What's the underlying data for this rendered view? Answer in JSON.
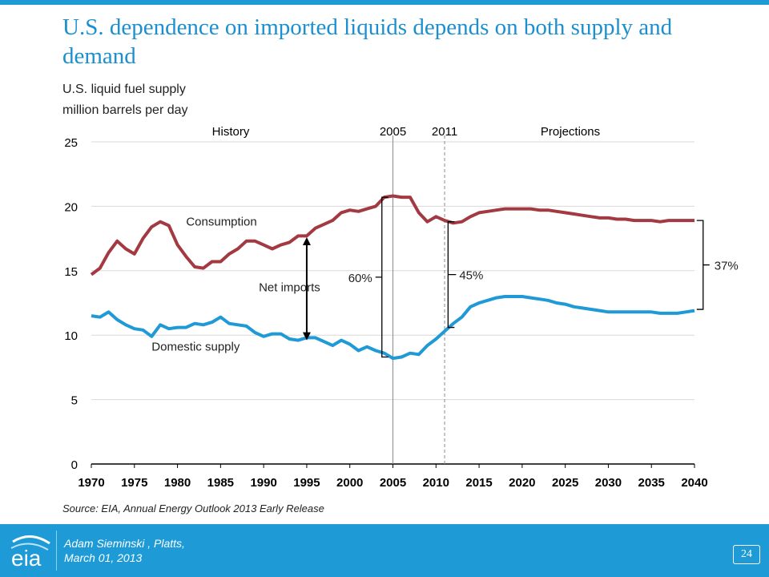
{
  "slide": {
    "title": "U.S. dependence on imported liquids depends on both supply and demand",
    "subtitle_line1": "U.S. liquid fuel supply",
    "subtitle_line2": "million barrels per day",
    "source": "Source:  EIA, Annual Energy Outlook 2013 Early Release",
    "footer_author": "Adam Sieminski , Platts,",
    "footer_date": "March 01, 2013",
    "page_number": "24",
    "logo_text": "eia"
  },
  "colors": {
    "brand_blue": "#1e9bd7",
    "consumption": "#a33a42",
    "domestic": "#1f9ad6"
  },
  "chart_data": {
    "type": "line",
    "xlim": [
      1970,
      2040
    ],
    "ylim": [
      0,
      25
    ],
    "x_ticks": [
      1970,
      1975,
      1980,
      1985,
      1990,
      1995,
      2000,
      2005,
      2010,
      2015,
      2020,
      2025,
      2030,
      2035,
      2040
    ],
    "y_ticks": [
      0,
      5,
      10,
      15,
      20,
      25
    ],
    "grid": true,
    "period_labels": {
      "history": "History",
      "projections": "Projections"
    },
    "markers": [
      {
        "year": 2005,
        "label": "2005",
        "style": "solid"
      },
      {
        "year": 2011,
        "label": "2011",
        "style": "dashed"
      }
    ],
    "series": [
      {
        "name": "Consumption",
        "x": [
          1970,
          1971,
          1972,
          1973,
          1974,
          1975,
          1976,
          1977,
          1978,
          1979,
          1980,
          1981,
          1982,
          1983,
          1984,
          1985,
          1986,
          1987,
          1988,
          1989,
          1990,
          1991,
          1992,
          1993,
          1994,
          1995,
          1996,
          1997,
          1998,
          1999,
          2000,
          2001,
          2002,
          2003,
          2004,
          2005,
          2006,
          2007,
          2008,
          2009,
          2010,
          2011,
          2012,
          2013,
          2014,
          2015,
          2016,
          2017,
          2018,
          2019,
          2020,
          2021,
          2022,
          2023,
          2024,
          2025,
          2026,
          2027,
          2028,
          2029,
          2030,
          2031,
          2032,
          2033,
          2034,
          2035,
          2036,
          2037,
          2038,
          2039,
          2040
        ],
        "values": [
          14.7,
          15.2,
          16.4,
          17.3,
          16.7,
          16.3,
          17.5,
          18.4,
          18.8,
          18.5,
          17.0,
          16.1,
          15.3,
          15.2,
          15.7,
          15.7,
          16.3,
          16.7,
          17.3,
          17.3,
          17.0,
          16.7,
          17.0,
          17.2,
          17.7,
          17.7,
          18.3,
          18.6,
          18.9,
          19.5,
          19.7,
          19.6,
          19.8,
          20.0,
          20.7,
          20.8,
          20.7,
          20.7,
          19.5,
          18.8,
          19.2,
          18.9,
          18.7,
          18.8,
          19.2,
          19.5,
          19.6,
          19.7,
          19.8,
          19.8,
          19.8,
          19.8,
          19.7,
          19.7,
          19.6,
          19.5,
          19.4,
          19.3,
          19.2,
          19.1,
          19.1,
          19.0,
          19.0,
          18.9,
          18.9,
          18.9,
          18.8,
          18.9,
          18.9,
          18.9,
          18.9
        ]
      },
      {
        "name": "Domestic supply",
        "x": [
          1970,
          1971,
          1972,
          1973,
          1974,
          1975,
          1976,
          1977,
          1978,
          1979,
          1980,
          1981,
          1982,
          1983,
          1984,
          1985,
          1986,
          1987,
          1988,
          1989,
          1990,
          1991,
          1992,
          1993,
          1994,
          1995,
          1996,
          1997,
          1998,
          1999,
          2000,
          2001,
          2002,
          2003,
          2004,
          2005,
          2006,
          2007,
          2008,
          2009,
          2010,
          2011,
          2012,
          2013,
          2014,
          2015,
          2016,
          2017,
          2018,
          2019,
          2020,
          2021,
          2022,
          2023,
          2024,
          2025,
          2026,
          2027,
          2028,
          2029,
          2030,
          2031,
          2032,
          2033,
          2034,
          2035,
          2036,
          2037,
          2038,
          2039,
          2040
        ],
        "values": [
          11.5,
          11.4,
          11.8,
          11.2,
          10.8,
          10.5,
          10.4,
          9.9,
          10.8,
          10.5,
          10.6,
          10.6,
          10.9,
          10.8,
          11.0,
          11.4,
          10.9,
          10.8,
          10.7,
          10.2,
          9.9,
          10.1,
          10.1,
          9.7,
          9.6,
          9.8,
          9.8,
          9.5,
          9.2,
          9.6,
          9.3,
          8.8,
          9.1,
          8.8,
          8.6,
          8.2,
          8.3,
          8.6,
          8.5,
          9.2,
          9.7,
          10.3,
          10.9,
          11.4,
          12.2,
          12.5,
          12.7,
          12.9,
          13.0,
          13.0,
          13.0,
          12.9,
          12.8,
          12.7,
          12.5,
          12.4,
          12.2,
          12.1,
          12.0,
          11.9,
          11.8,
          11.8,
          11.8,
          11.8,
          11.8,
          11.8,
          11.7,
          11.7,
          11.7,
          11.8,
          11.9
        ]
      }
    ],
    "annotations": [
      {
        "text": "Consumption",
        "year": 1981,
        "value": 18.5
      },
      {
        "text": "Domestic supply",
        "year": 1977,
        "value": 8.8
      },
      {
        "text": "Net imports",
        "year": 1993,
        "value": 13.4,
        "arrow_year": 1995,
        "arrow_from": 17.6,
        "arrow_to": 9.6
      },
      {
        "text": "60%",
        "year": 2004,
        "bracket_from": 8.3,
        "bracket_to": 20.7
      },
      {
        "text": "45%",
        "year": 2012,
        "bracket_from": 10.6,
        "bracket_to": 18.8
      },
      {
        "text": "37%",
        "year": 2041,
        "bracket_from": 12.0,
        "bracket_to": 18.9
      }
    ]
  }
}
